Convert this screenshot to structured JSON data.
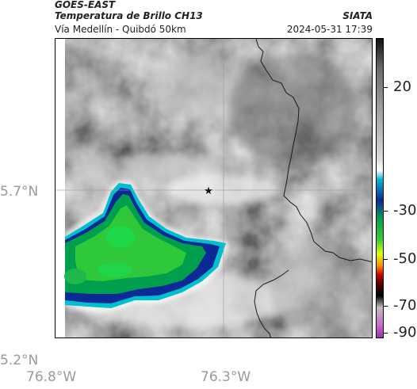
{
  "header": {
    "satellite": "GOES-EAST",
    "product": "Temperatura de Brillo CH13",
    "region": "Vía Medellín - Quibdó 50km",
    "source": "SIATA",
    "datetime": "2024-05-31 17:39"
  },
  "axes": {
    "lat_labels": [
      "5.7°N",
      "5.2°N"
    ],
    "lon_labels": [
      "76.8°W",
      "76.3°W"
    ]
  },
  "marker": {
    "icon": "star-icon",
    "symbol": "★"
  },
  "colorbar": {
    "labels": [
      "20",
      "-30",
      "-50",
      "-70",
      "-90"
    ],
    "stops": [
      [
        "#111111",
        0.0
      ],
      [
        "#6b6b6b",
        0.1
      ],
      [
        "#9a9a9a",
        0.22
      ],
      [
        "#d9d9d9",
        0.4
      ],
      [
        "#ffffff",
        0.44
      ],
      [
        "#00bcd4",
        0.47
      ],
      [
        "#0a2a9a",
        0.54
      ],
      [
        "#00a050",
        0.6
      ],
      [
        "#33cc33",
        0.67
      ],
      [
        "#e0ff00",
        0.72
      ],
      [
        "#ff8c00",
        0.76
      ],
      [
        "#d00000",
        0.79
      ],
      [
        "#550000",
        0.82
      ],
      [
        "#000000",
        0.86
      ],
      [
        "#bfbfbf",
        0.9
      ],
      [
        "#cc66cc",
        0.96
      ],
      [
        "#9933aa",
        1.0
      ]
    ]
  }
}
